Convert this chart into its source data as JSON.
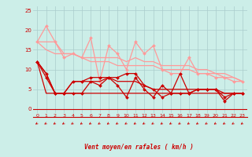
{
  "bg_color": "#cceee8",
  "grid_color": "#aacccc",
  "xlabel": "Vent moyen/en rafales ( km/h )",
  "x_ticks": [
    0,
    1,
    2,
    3,
    4,
    5,
    6,
    7,
    8,
    9,
    10,
    11,
    12,
    13,
    14,
    15,
    16,
    17,
    18,
    19,
    20,
    21,
    22,
    23
  ],
  "ylim": [
    -1,
    26
  ],
  "yticks": [
    0,
    5,
    10,
    15,
    20,
    25
  ],
  "lines": [
    {
      "x": [
        0,
        1,
        2,
        3,
        4,
        5,
        6,
        7,
        8,
        9,
        10,
        11,
        12,
        13,
        14,
        15,
        16,
        17,
        18,
        19,
        20,
        21,
        22,
        23
      ],
      "y": [
        17,
        21,
        17,
        13,
        14,
        13,
        18,
        7,
        16,
        14,
        10,
        17,
        14,
        16,
        10,
        9,
        9,
        13,
        9,
        9,
        8,
        8,
        7,
        7
      ],
      "color": "#ff9999",
      "lw": 0.9,
      "marker": "D",
      "ms": 2.0
    },
    {
      "x": [
        0,
        1,
        2,
        3,
        4,
        5,
        6,
        7,
        8,
        9,
        10,
        11,
        12,
        13,
        14,
        15,
        16,
        17,
        18,
        19,
        20,
        21,
        22,
        23
      ],
      "y": [
        17,
        17,
        17,
        14,
        14,
        13,
        13,
        13,
        13,
        13,
        12,
        13,
        12,
        12,
        11,
        11,
        11,
        11,
        10,
        10,
        9,
        9,
        8,
        7
      ],
      "color": "#ff9999",
      "lw": 0.9,
      "marker": null,
      "ms": 0
    },
    {
      "x": [
        0,
        1,
        2,
        3,
        4,
        5,
        6,
        7,
        8,
        9,
        10,
        11,
        12,
        13,
        14,
        15,
        16,
        17,
        18,
        19,
        20,
        21,
        22,
        23
      ],
      "y": [
        17,
        15,
        14,
        14,
        14,
        13,
        12,
        12,
        12,
        11,
        11,
        11,
        11,
        11,
        10,
        10,
        10,
        10,
        9,
        9,
        9,
        8,
        8,
        7
      ],
      "color": "#ff9999",
      "lw": 0.9,
      "marker": null,
      "ms": 0
    },
    {
      "x": [
        0,
        1,
        2,
        3,
        4,
        5,
        6,
        7,
        8,
        9,
        10,
        11,
        12,
        13,
        14,
        15,
        16,
        17,
        18,
        19,
        20,
        21,
        22,
        23
      ],
      "y": [
        12,
        9,
        4,
        4,
        7,
        7,
        8,
        8,
        8,
        8,
        9,
        9,
        6,
        5,
        3,
        4,
        4,
        4,
        5,
        5,
        5,
        3,
        4,
        4
      ],
      "color": "#cc0000",
      "lw": 0.9,
      "marker": "D",
      "ms": 2.0
    },
    {
      "x": [
        0,
        1,
        2,
        3,
        4,
        5,
        6,
        7,
        8,
        9,
        10,
        11,
        12,
        13,
        14,
        15,
        16,
        17,
        18,
        19,
        20,
        21,
        22,
        23
      ],
      "y": [
        12,
        9,
        4,
        4,
        7,
        7,
        7,
        7,
        8,
        7,
        7,
        7,
        6,
        5,
        5,
        5,
        5,
        5,
        5,
        5,
        5,
        4,
        4,
        4
      ],
      "color": "#cc0000",
      "lw": 0.9,
      "marker": null,
      "ms": 0
    },
    {
      "x": [
        0,
        1,
        2,
        3,
        4,
        5,
        6,
        7,
        8,
        9,
        10,
        11,
        12,
        13,
        14,
        15,
        16,
        17,
        18,
        19,
        20,
        21,
        22,
        23
      ],
      "y": [
        12,
        8,
        4,
        4,
        4,
        4,
        7,
        6,
        8,
        6,
        3,
        8,
        5,
        3,
        6,
        4,
        9,
        4,
        5,
        5,
        5,
        2,
        4,
        4
      ],
      "color": "#cc0000",
      "lw": 0.9,
      "marker": "D",
      "ms": 2.0
    },
    {
      "x": [
        0,
        1,
        2,
        3,
        4,
        5,
        6,
        7,
        8,
        9,
        10,
        11,
        12,
        13,
        14,
        15,
        16,
        17,
        18,
        19,
        20,
        21,
        22,
        23
      ],
      "y": [
        12,
        4,
        4,
        4,
        4,
        4,
        4,
        4,
        4,
        4,
        4,
        4,
        4,
        4,
        4,
        4,
        4,
        4,
        4,
        4,
        4,
        4,
        4,
        4
      ],
      "color": "#cc0000",
      "lw": 0.9,
      "marker": null,
      "ms": 0
    }
  ]
}
